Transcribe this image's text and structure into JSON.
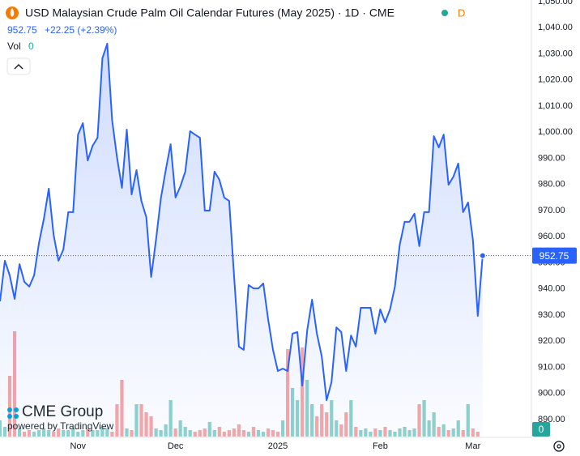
{
  "chart_data": {
    "type": "line",
    "title": "USD Malaysian Crude Palm Oil Calendar Futures (May 2025) · 1D · CME",
    "status": "D",
    "change": "+22.25 (+2.39%)",
    "color": "#2962ff",
    "values": [
      935.3,
      950.8,
      945.2,
      936.2,
      949.5,
      942.7,
      940.9,
      945.2,
      957.6,
      966.9,
      978.4,
      960.7,
      950.8,
      955.1,
      969.4,
      969.4,
      999.1,
      1003.5,
      989.2,
      994.8,
      997.9,
      1028.3,
      1033.9,
      1004.7,
      990.5,
      978.7,
      1001.0,
      976.2,
      985.5,
      973.7,
      967.5,
      944.6,
      958.8,
      974.7,
      985.5,
      995.4,
      975.0,
      979.3,
      984.9,
      1000.4,
      999.1,
      997.9,
      970.0,
      970.0,
      984.9,
      981.8,
      975.0,
      973.7,
      945.2,
      917.9,
      916.7,
      941.5,
      940.2,
      940.2,
      942.1,
      928.4,
      916.7,
      908.6,
      909.5,
      908.6,
      922.9,
      923.5,
      903.0,
      924.1,
      935.9,
      922.9,
      914.2,
      897.4,
      904.3,
      925.3,
      923.5,
      908.6,
      922.2,
      917.9,
      932.8,
      932.8,
      932.8,
      922.9,
      932.2,
      927.2,
      932.2,
      940.9,
      957.0,
      965.7,
      965.7,
      968.8,
      956.4,
      969.4,
      969.4,
      998.5,
      994.2,
      999.1,
      979.9,
      983.0,
      988.0,
      969.4,
      973.1,
      958.8,
      929.7,
      952.75
    ],
    "xlim": [
      0,
      109
    ],
    "xticks": [
      {
        "value": 16,
        "label": "Nov"
      },
      {
        "value": 36,
        "label": "Dec"
      },
      {
        "value": 57,
        "label": "2025"
      },
      {
        "value": 78,
        "label": "Feb"
      },
      {
        "value": 97,
        "label": "Mar"
      }
    ],
    "ylim": [
      890,
      1050
    ],
    "yticks": [
      {
        "value": 890,
        "label": "890.00"
      },
      {
        "value": 900,
        "label": "900.00"
      },
      {
        "value": 910,
        "label": "910.00"
      },
      {
        "value": 920,
        "label": "920.00"
      },
      {
        "value": 930,
        "label": "930.00"
      },
      {
        "value": 940,
        "label": "940.00"
      },
      {
        "value": 950,
        "label": "950.00"
      },
      {
        "value": 960,
        "label": "960.00"
      },
      {
        "value": 970,
        "label": "970.00"
      },
      {
        "value": 980,
        "label": "980.00"
      },
      {
        "value": 990,
        "label": "990.00"
      },
      {
        "value": 1000,
        "label": "1,000.00"
      },
      {
        "value": 1010,
        "label": "1,010.00"
      },
      {
        "value": 1020,
        "label": "1,020.00"
      },
      {
        "value": 1030,
        "label": "1,030.00"
      },
      {
        "value": 1040,
        "label": "1,040.00"
      },
      {
        "value": 1050,
        "label": "1,050.00"
      }
    ],
    "grid": false,
    "volume": {
      "label": "Vol",
      "up_color": "#8fd3cd",
      "down_color": "#f5a8a8",
      "values": [
        20,
        12,
        75,
        130,
        10,
        6,
        8,
        6,
        8,
        10,
        8,
        6,
        10,
        8,
        8,
        10,
        6,
        8,
        10,
        8,
        8,
        12,
        10,
        6,
        40,
        70,
        10,
        8,
        40,
        40,
        30,
        25,
        10,
        8,
        15,
        45,
        10,
        20,
        12,
        8,
        6,
        8,
        10,
        18,
        8,
        12,
        6,
        8,
        10,
        15,
        8,
        6,
        12,
        8,
        6,
        10,
        8,
        6,
        20,
        108,
        60,
        45,
        110,
        70,
        40,
        25,
        40,
        30,
        45,
        20,
        15,
        30,
        45,
        12,
        8,
        10,
        6,
        10,
        8,
        12,
        8,
        6,
        10,
        12,
        8,
        10,
        40,
        45,
        20,
        30,
        12,
        15,
        8,
        10,
        20,
        8,
        40,
        10,
        6,
        0
      ]
    },
    "branding": {
      "logo": "CME Group",
      "powered": "powered by TradingView"
    }
  }
}
